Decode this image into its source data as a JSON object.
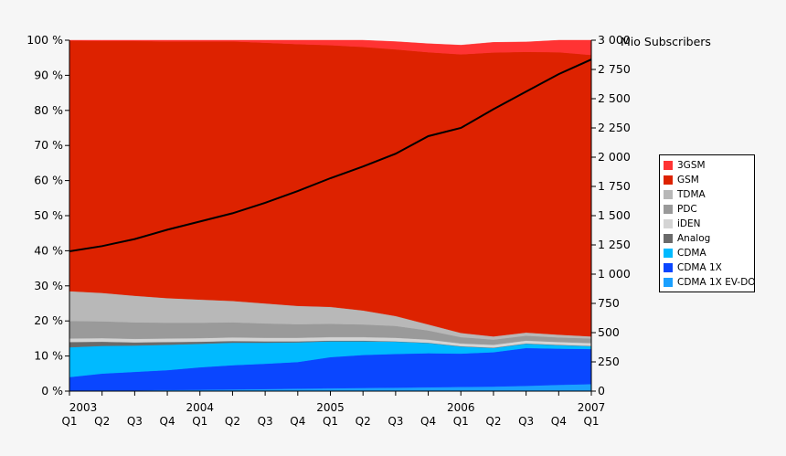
{
  "chart_data": {
    "type": "area",
    "title": "",
    "ylabel_left": "",
    "ylabel_right": "Mio Subscribers",
    "ylim_left": [
      0,
      100
    ],
    "ylim_right": [
      0,
      3000
    ],
    "left_ticks": [
      "0 %",
      "10 %",
      "20 %",
      "30 %",
      "40 %",
      "50 %",
      "60 %",
      "70 %",
      "80 %",
      "90 %",
      "100 %"
    ],
    "right_ticks": [
      "0",
      "250",
      "500",
      "750",
      "1 000",
      "1 250",
      "1 500",
      "1 750",
      "2 000",
      "2 250",
      "2 500",
      "2 750",
      "3 000"
    ],
    "quarter_labels": [
      "Q1",
      "Q2",
      "Q3",
      "Q4",
      "Q1",
      "Q2",
      "Q3",
      "Q4",
      "Q1",
      "Q2",
      "Q3",
      "Q4",
      "Q1",
      "Q2",
      "Q3",
      "Q4",
      "Q1"
    ],
    "year_labels": [
      {
        "label": "2003",
        "index": 0
      },
      {
        "label": "2004",
        "index": 4
      },
      {
        "label": "2005",
        "index": 8
      },
      {
        "label": "2006",
        "index": 12
      },
      {
        "label": "2007",
        "index": 16
      }
    ],
    "legend_position": "right",
    "series": [
      {
        "name": "CDMA 1X EV-DO",
        "color": "#1aa0ff",
        "values": [
          0.1,
          0.2,
          0.2,
          0.3,
          0.4,
          0.5,
          0.6,
          0.7,
          0.8,
          0.9,
          1.0,
          1.1,
          1.2,
          1.3,
          1.5,
          1.8,
          2.0
        ]
      },
      {
        "name": "CDMA 1X",
        "color": "#0a46ff",
        "values": [
          3.9,
          4.8,
          5.3,
          5.7,
          6.4,
          6.9,
          7.2,
          7.6,
          8.9,
          9.4,
          9.6,
          9.7,
          9.5,
          9.8,
          10.8,
          10.3,
          10.0
        ]
      },
      {
        "name": "CDMA",
        "color": "#00baff",
        "values": [
          8.5,
          7.9,
          7.5,
          7.2,
          6.7,
          6.4,
          6.0,
          5.6,
          4.5,
          3.9,
          3.5,
          2.9,
          2.0,
          1.2,
          1.2,
          1.0,
          0.8
        ]
      },
      {
        "name": "Analog",
        "color": "#6a6a6a",
        "values": [
          1.5,
          1.2,
          0.9,
          0.8,
          0.6,
          0.5,
          0.4,
          0.3,
          0.2,
          0.2,
          0.1,
          0.1,
          0.1,
          0.1,
          0.1,
          0.1,
          0.1
        ]
      },
      {
        "name": "iDEN",
        "color": "#d4d4d4",
        "values": [
          1.0,
          1.0,
          1.0,
          1.0,
          1.0,
          1.0,
          1.0,
          1.0,
          1.0,
          1.0,
          1.0,
          0.9,
          0.8,
          0.8,
          0.8,
          0.8,
          0.8
        ]
      },
      {
        "name": "PDC",
        "color": "#9a9a9a",
        "values": [
          5.0,
          4.8,
          4.7,
          4.5,
          4.4,
          4.3,
          4.1,
          3.9,
          3.8,
          3.6,
          3.4,
          2.6,
          1.8,
          1.5,
          1.4,
          1.3,
          1.3
        ]
      },
      {
        "name": "TDMA",
        "color": "#b8b8b8",
        "values": [
          8.5,
          8.1,
          7.6,
          7.0,
          6.6,
          6.1,
          5.7,
          5.2,
          4.8,
          4.0,
          2.8,
          1.7,
          1.2,
          0.9,
          0.9,
          0.8,
          0.6
        ]
      },
      {
        "name": "GSM",
        "color": "#dd2200",
        "values": [
          71.4,
          71.8,
          72.6,
          73.2,
          73.6,
          74.0,
          74.3,
          74.6,
          74.6,
          75.1,
          76.0,
          77.6,
          79.4,
          80.9,
          80.0,
          80.5,
          80.2
        ]
      },
      {
        "name": "3GSM",
        "color": "#ff3333",
        "values": [
          0.1,
          0.2,
          0.2,
          0.3,
          0.3,
          0.3,
          0.7,
          1.1,
          1.4,
          1.9,
          2.2,
          2.4,
          2.6,
          2.9,
          2.8,
          3.4,
          4.2
        ]
      }
    ],
    "legend_order": [
      "3GSM",
      "GSM",
      "TDMA",
      "PDC",
      "iDEN",
      "Analog",
      "CDMA",
      "CDMA 1X",
      "CDMA 1X EV-DO"
    ],
    "subscribers_line": {
      "axis": "right",
      "color": "#000000",
      "values": [
        1195,
        1240,
        1300,
        1380,
        1450,
        1520,
        1610,
        1710,
        1820,
        1920,
        2030,
        2180,
        2250,
        2410,
        2560,
        2710,
        2835
      ]
    }
  }
}
